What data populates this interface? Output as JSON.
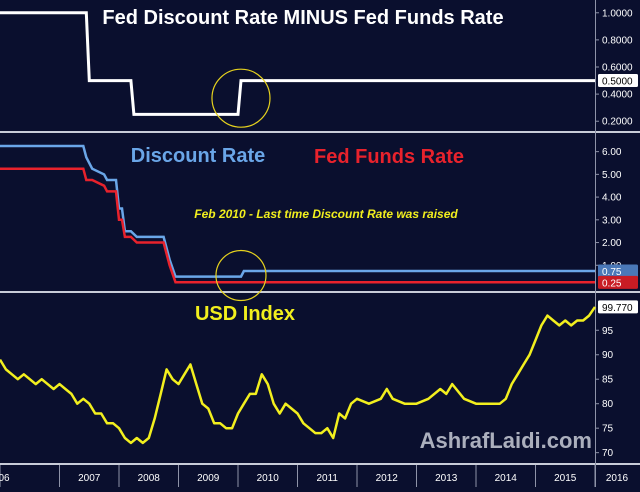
{
  "colors": {
    "background": "#0a0f2e",
    "divider": "#c8ccd8",
    "spread_line": "#ffffff",
    "discount_line": "#6aa6e8",
    "funds_line": "#e8222c",
    "usd_line": "#f2ef1e",
    "highlight_circle": "#e6d21e",
    "annotation_text": "#f2ef1e",
    "axis_text": "#ffffff"
  },
  "watermark": "AshrafLaidi.com",
  "x_axis": {
    "ticks": [
      "06",
      "2007",
      "2008",
      "2009",
      "2010",
      "2011",
      "2012",
      "2013",
      "2014",
      "2015",
      "2016"
    ]
  },
  "chart_data": [
    {
      "type": "line",
      "title": "Fed Discount Rate MINUS Fed Funds Rate",
      "x": [
        2006.0,
        2007.45,
        2007.5,
        2008.2,
        2008.25,
        2009.8,
        2010.0,
        2010.05,
        2016.0
      ],
      "series": [
        {
          "values": [
            1.0,
            1.0,
            0.5,
            0.5,
            0.25,
            0.25,
            0.25,
            0.5,
            0.5
          ]
        }
      ],
      "ylim": [
        0.15,
        1.05
      ],
      "yticks": [
        "1.0000",
        "0.8000",
        "0.6000",
        "0.4000",
        "0.2000"
      ],
      "ytick_values": [
        1.0,
        0.8,
        0.6,
        0.4,
        0.2
      ],
      "last_value_label": "0.5000",
      "highlight": "circle around Feb 2010 step"
    },
    {
      "type": "line",
      "title": "",
      "legend": [
        "Discount Rate",
        "Fed Funds Rate"
      ],
      "annotation": "Feb 2010 - Last time Discount Rate was raised",
      "x": [
        2006.0,
        2007.4,
        2007.45,
        2007.55,
        2007.75,
        2007.8,
        2007.95,
        2008.0,
        2008.05,
        2008.1,
        2008.2,
        2008.3,
        2008.75,
        2008.8,
        2008.85,
        2008.95,
        2009.0,
        2009.7,
        2010.05,
        2010.1,
        2016.0
      ],
      "series": [
        {
          "name": "Discount Rate",
          "values": [
            6.25,
            6.25,
            5.75,
            5.25,
            5.0,
            4.75,
            4.75,
            3.5,
            3.5,
            2.5,
            2.5,
            2.25,
            2.25,
            1.75,
            1.25,
            0.5,
            0.5,
            0.5,
            0.5,
            0.75,
            0.75
          ]
        },
        {
          "name": "Fed Funds Rate",
          "values": [
            5.25,
            5.25,
            4.75,
            4.75,
            4.5,
            4.25,
            4.25,
            3.0,
            3.0,
            2.25,
            2.25,
            2.0,
            2.0,
            1.5,
            1.0,
            0.25,
            0.25,
            0.25,
            0.25,
            0.25,
            0.25
          ]
        }
      ],
      "ylim": [
        0.0,
        6.6
      ],
      "yticks": [
        "6.00",
        "5.00",
        "4.00",
        "3.00",
        "2.00",
        "1.00"
      ],
      "ytick_values": [
        6.0,
        5.0,
        4.0,
        3.0,
        2.0,
        1.0
      ],
      "last_value_labels": [
        "0.75",
        "0.25"
      ],
      "highlight": "circle around Feb 2010 step"
    },
    {
      "type": "line",
      "title": "USD Index",
      "x": [
        2006.0,
        2006.1,
        2006.2,
        2006.3,
        2006.4,
        2006.5,
        2006.6,
        2006.7,
        2006.8,
        2006.9,
        2007.0,
        2007.1,
        2007.2,
        2007.3,
        2007.4,
        2007.5,
        2007.6,
        2007.7,
        2007.8,
        2007.9,
        2008.0,
        2008.1,
        2008.2,
        2008.3,
        2008.4,
        2008.5,
        2008.6,
        2008.7,
        2008.8,
        2008.9,
        2009.0,
        2009.1,
        2009.2,
        2009.3,
        2009.4,
        2009.5,
        2009.6,
        2009.7,
        2009.8,
        2009.9,
        2010.0,
        2010.1,
        2010.2,
        2010.3,
        2010.4,
        2010.5,
        2010.6,
        2010.7,
        2010.8,
        2010.9,
        2011.0,
        2011.1,
        2011.2,
        2011.3,
        2011.4,
        2011.5,
        2011.6,
        2011.7,
        2011.8,
        2011.9,
        2012.0,
        2012.2,
        2012.4,
        2012.5,
        2012.6,
        2012.8,
        2013.0,
        2013.2,
        2013.4,
        2013.5,
        2013.6,
        2013.8,
        2014.0,
        2014.2,
        2014.4,
        2014.5,
        2014.6,
        2014.7,
        2014.8,
        2014.9,
        2015.0,
        2015.1,
        2015.2,
        2015.3,
        2015.4,
        2015.5,
        2015.6,
        2015.7,
        2015.8,
        2015.9,
        2016.0
      ],
      "series": [
        {
          "name": "USD Index",
          "values": [
            89,
            87,
            86,
            85,
            86,
            85,
            84,
            85,
            84,
            83,
            84,
            83,
            82,
            80,
            81,
            80,
            78,
            78,
            76,
            76,
            75,
            73,
            72,
            73,
            72,
            73,
            77,
            82,
            87,
            85,
            84,
            86,
            88,
            84,
            80,
            79,
            76,
            76,
            75,
            75,
            78,
            80,
            82,
            82,
            86,
            84,
            80,
            78,
            80,
            79,
            78,
            76,
            75,
            74,
            74,
            75,
            73,
            78,
            77,
            80,
            81,
            80,
            81,
            83,
            81,
            80,
            80,
            81,
            83,
            82,
            84,
            81,
            80,
            80,
            80,
            81,
            84,
            86,
            88,
            90,
            93,
            96,
            98,
            97,
            96,
            97,
            96,
            97,
            97,
            98,
            99.77
          ]
        }
      ],
      "ylim": [
        68.5,
        102
      ],
      "yticks": [
        "95",
        "90",
        "85",
        "80",
        "75",
        "70"
      ],
      "ytick_values": [
        95,
        90,
        85,
        80,
        75,
        70
      ],
      "last_value_label": "99.770"
    }
  ]
}
